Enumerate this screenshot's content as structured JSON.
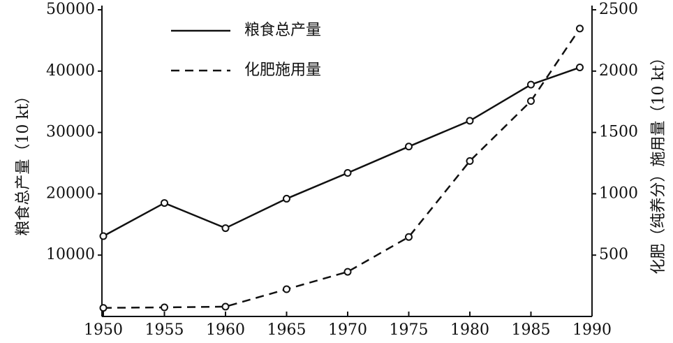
{
  "chart_data": {
    "type": "line",
    "ylabel": "粮食总产量（10 kt）",
    "y2label": "化肥（纯养分）施用量（10 kt）",
    "x": [
      1950,
      1955,
      1960,
      1965,
      1970,
      1975,
      1980,
      1985,
      1989
    ],
    "xlim": [
      1950,
      1990
    ],
    "xticks": [
      1950,
      1955,
      1960,
      1965,
      1970,
      1975,
      1980,
      1985,
      1990
    ],
    "ylim": [
      0,
      50000
    ],
    "yticks": [
      10000,
      20000,
      30000,
      40000,
      50000
    ],
    "y2lim": [
      0,
      2500
    ],
    "y2ticks": [
      500,
      1000,
      1500,
      2000,
      2500
    ],
    "legend": "upper-left",
    "series": [
      {
        "name": "粮食总产量",
        "color": "#111111",
        "line_style": "solid",
        "values": [
          13100,
          18500,
          14400,
          19200,
          23400,
          27700,
          31900,
          37800,
          40600
        ]
      },
      {
        "name": "化肥施用量",
        "color": "#111111",
        "line_style": "dashed",
        "axis": "y2",
        "values": [
          70,
          74,
          80,
          222,
          364,
          648,
          1267,
          1756,
          2347
        ]
      }
    ]
  }
}
